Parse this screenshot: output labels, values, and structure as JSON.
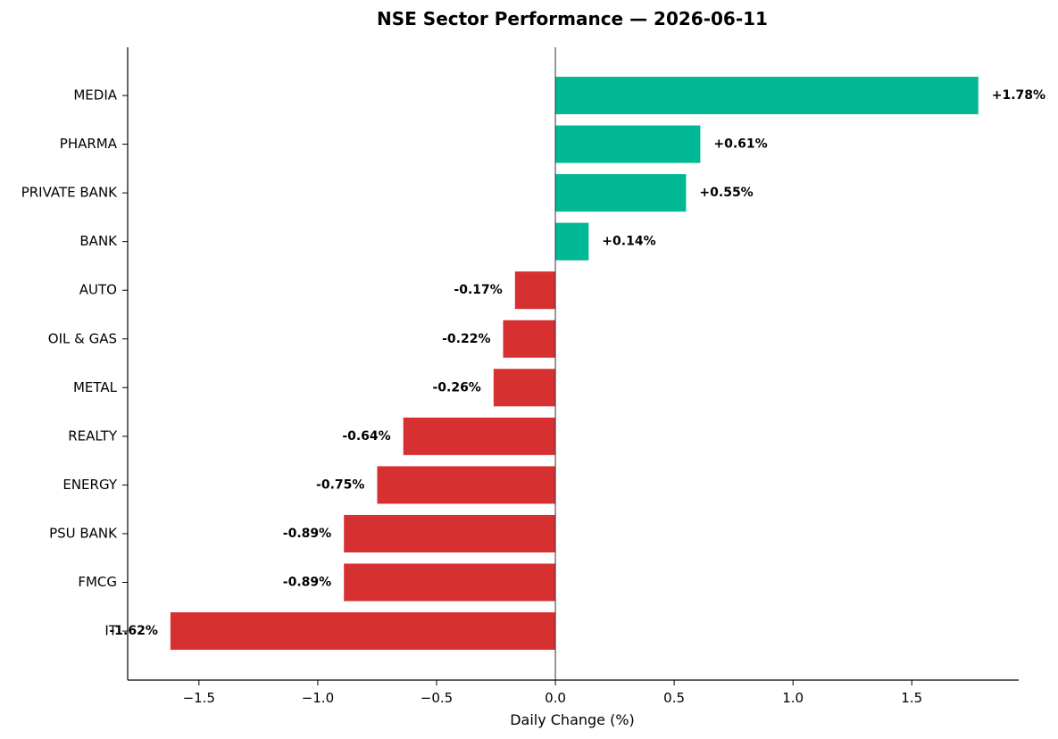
{
  "chart_data": {
    "type": "bar",
    "orientation": "horizontal",
    "title": "NSE Sector Performance — 2026-06-11",
    "xlabel": "Daily Change (%)",
    "ylabel": "",
    "xlim": [
      -1.8,
      1.95
    ],
    "x_ticks": [
      -1.5,
      -1.0,
      -0.5,
      0.0,
      0.5,
      1.0,
      1.5
    ],
    "x_tick_labels": [
      "−1.5",
      "−1.0",
      "−0.5",
      "0.0",
      "0.5",
      "1.0",
      "1.5"
    ],
    "grid": false,
    "legend": "none",
    "categories": [
      "MEDIA",
      "PHARMA",
      "PRIVATE BANK",
      "BANK",
      "AUTO",
      "OIL & GAS",
      "METAL",
      "REALTY",
      "ENERGY",
      "PSU BANK",
      "FMCG",
      "IT"
    ],
    "category_display_labels": [
      "MEDIA",
      "PHARMA",
      "PRIVATE BANK",
      "BANK",
      "AUTO",
      "OIL & GAS",
      "METAL",
      "REALTY",
      "ENERGY",
      "PSU BANK",
      "FMCG",
      "IT"
    ],
    "values": [
      1.78,
      0.61,
      0.55,
      0.14,
      -0.17,
      -0.22,
      -0.26,
      -0.64,
      -0.75,
      -0.89,
      -0.89,
      -1.62
    ],
    "value_labels": [
      "+1.78%",
      "+0.61%",
      "+0.55%",
      "+0.14%",
      "-0.17%",
      "-0.22%",
      "-0.26%",
      "-0.64%",
      "-0.75%",
      "-0.89%",
      "-0.89%",
      "-1.62%"
    ],
    "colors": {
      "positive": "#00b894",
      "negative": "#d63031",
      "zero_line": "#333333",
      "axis": "#000000"
    }
  }
}
